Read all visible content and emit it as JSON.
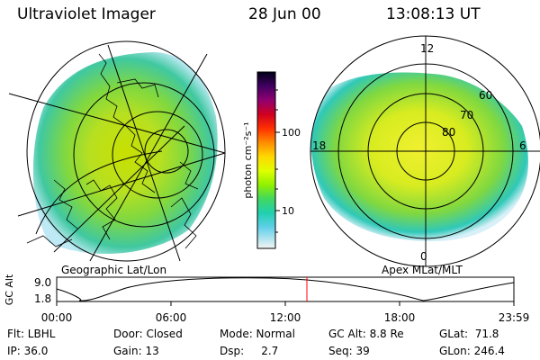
{
  "header": {
    "title": "Ultraviolet Imager",
    "date": "28 Jun 00",
    "time": "13:08:13 UT"
  },
  "left_panel": {
    "caption": "Geographic Lat/Lon"
  },
  "right_panel": {
    "caption": "Apex MLat/MLT",
    "mlt_labels": {
      "top": "12",
      "left": "18",
      "right": "6",
      "bottom": "0"
    },
    "lat_labels": [
      "60",
      "70",
      "80"
    ]
  },
  "colorbar": {
    "unit_label": "photon cm⁻²s⁻¹",
    "ticks": [
      "100",
      "10"
    ],
    "colors": [
      "#000010",
      "#3a0060",
      "#7a0080",
      "#c00040",
      "#f00000",
      "#ff6000",
      "#ffa000",
      "#ffe000",
      "#e0ff00",
      "#90ff00",
      "#40e040",
      "#20d0a0",
      "#30c0e0",
      "#a0e0f0",
      "#f0f0f0"
    ]
  },
  "orbit": {
    "y_axis_label": "GC Alt",
    "y_max": "9.0",
    "y_min": "1.8",
    "x_ticks": [
      "00:00",
      "06:00",
      "12:00",
      "18:00",
      "23:59"
    ],
    "marker_time": "13:08",
    "marker_color": "#ff0000"
  },
  "info": {
    "flt": "Flt: LBHL",
    "ip": "IP: 36.0",
    "door": "Door: Closed",
    "gain": "Gain: 13",
    "mode": "Mode: Normal",
    "dsp": "Dsp:     2.7",
    "gcalt": "GC Alt: 8.8 Re",
    "seq": "Seq: 39",
    "glat": "GLat:  71.8",
    "glon": "GLon: 246.4"
  }
}
